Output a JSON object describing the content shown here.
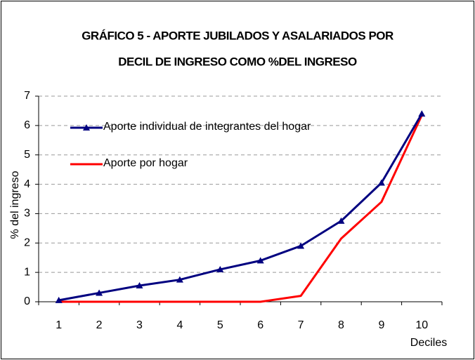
{
  "chart_data": {
    "type": "line",
    "title": [
      "GRÁFICO 5 - APORTE JUBILADOS Y ASALARIADOS POR",
      "DECIL DE INGRESO COMO %DEL INGRESO"
    ],
    "x_label": "Deciles",
    "y_label": "% del ingreso",
    "categories": [
      "1",
      "2",
      "3",
      "4",
      "5",
      "6",
      "7",
      "8",
      "9",
      "10"
    ],
    "series": [
      {
        "name": "Aporte individual de integrantes del hogar",
        "color": "#000080",
        "marker": "triangle",
        "values": [
          0.05,
          0.3,
          0.55,
          0.75,
          1.1,
          1.4,
          1.9,
          2.75,
          4.05,
          6.4
        ]
      },
      {
        "name": "Aporte por hogar",
        "color": "#ff0000",
        "values": [
          0,
          0,
          0,
          0,
          0,
          0,
          0.2,
          2.15,
          3.4,
          6.35
        ]
      }
    ],
    "ylim": [
      0,
      7
    ],
    "yticks": [
      0,
      1,
      2,
      3,
      4,
      5,
      6,
      7
    ],
    "grid": true
  }
}
